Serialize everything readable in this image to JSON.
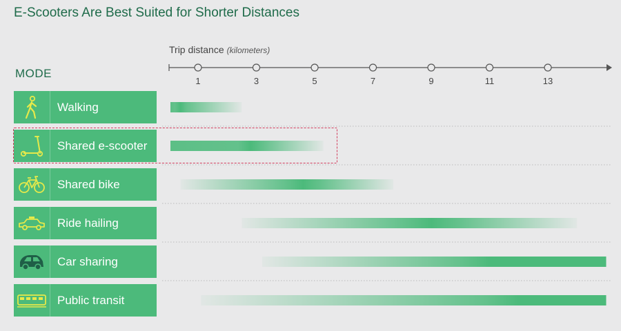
{
  "title": "E-Scooters Are Best Suited for Shorter Distances",
  "mode_heading": "MODE",
  "colors": {
    "title": "#1f6b4a",
    "card": "#4cba7b",
    "bar": "#4cba7b",
    "highlight": "#d13b5b",
    "icon_accent": "#e6e94a"
  },
  "chart_data": {
    "type": "bar",
    "orientation": "horizontal-range",
    "xlabel": "Trip distance",
    "xlabel_unit": "(kilometers)",
    "x_ticks": [
      1,
      3,
      5,
      7,
      9,
      11,
      13
    ],
    "xlim": [
      0,
      15
    ],
    "categories": [
      "Walking",
      "Shared e-scooter",
      "Shared bike",
      "Ride hailing",
      "Car sharing",
      "Public transit"
    ],
    "ranges": [
      {
        "mode": "Walking",
        "start": 0,
        "peak": 0.4,
        "end": 2.5
      },
      {
        "mode": "Shared e-scooter",
        "start": 0,
        "peak": 2.8,
        "end": 5.3
      },
      {
        "mode": "Shared bike",
        "start": 0.4,
        "peak": 4.6,
        "end": 7.7
      },
      {
        "mode": "Ride hailing",
        "start": 2.5,
        "peak": 9,
        "end": 14
      },
      {
        "mode": "Car sharing",
        "start": 3.2,
        "peak": 11,
        "end": 15
      },
      {
        "mode": "Public transit",
        "start": 1.1,
        "peak": 12,
        "end": 15
      }
    ],
    "highlighted": "Shared e-scooter"
  },
  "modes": [
    {
      "label": "Walking",
      "icon": "walking-person-icon"
    },
    {
      "label": "Shared e-scooter",
      "icon": "scooter-icon"
    },
    {
      "label": "Shared bike",
      "icon": "bicycle-icon"
    },
    {
      "label": "Ride hailing",
      "icon": "taxi-icon"
    },
    {
      "label": "Car sharing",
      "icon": "small-car-icon"
    },
    {
      "label": "Public transit",
      "icon": "train-icon"
    }
  ]
}
